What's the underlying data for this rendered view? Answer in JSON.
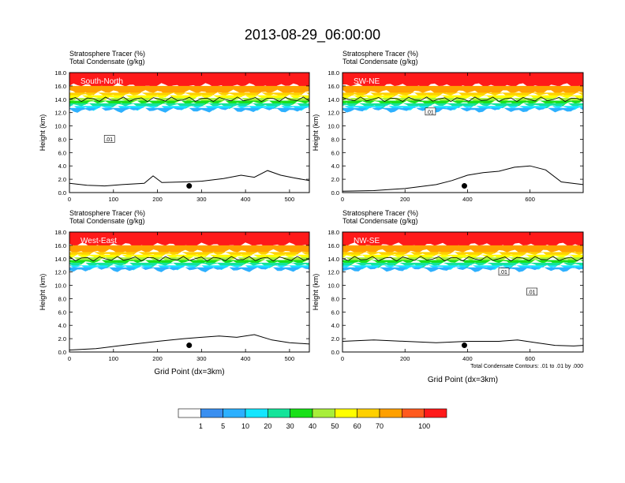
{
  "title": "2013-08-29_06:00:00",
  "colors": {
    "levels": [
      "#ffffff",
      "#3a8ff0",
      "#2cb0ff",
      "#14e6ff",
      "#14e49a",
      "#18e018",
      "#a8ee3a",
      "#ffff00",
      "#ffd000",
      "#ffa000",
      "#ff5a1e",
      "#ff1a1a"
    ]
  },
  "chart_data": [
    {
      "type": "heatmap",
      "name": "South-North",
      "header_line1": "Stratosphere Tracer   (%)",
      "header_line2": "Total Condensate   (g/kg)",
      "ylabel": "Height (km)",
      "xlabel": "",
      "xlim": [
        0,
        545
      ],
      "ylim": [
        0,
        18
      ],
      "xticks": [
        0,
        100,
        200,
        300,
        400,
        500
      ],
      "xtick_labels": [
        "0",
        "100",
        "200",
        "300",
        "400",
        "500"
      ],
      "yticks": [
        0,
        2,
        4,
        6,
        8,
        10,
        12,
        14,
        16,
        18
      ],
      "ytick_labels": [
        "0.0",
        "2.0",
        "4.0",
        "6.0",
        "8.0",
        "10.0",
        "12.0",
        "14.0",
        "16.0",
        "18.0"
      ],
      "tracer_bands_km": [
        [
          18,
          16,
          100
        ],
        [
          16,
          15,
          70
        ],
        [
          15,
          14.6,
          60
        ],
        [
          14.6,
          14.2,
          50
        ],
        [
          14.2,
          13.8,
          40
        ],
        [
          13.8,
          13.4,
          30
        ],
        [
          13.4,
          13.0,
          20
        ],
        [
          13.0,
          12.7,
          10
        ],
        [
          12.7,
          12.4,
          5
        ]
      ],
      "contour_label": ".01",
      "contour_label_pos": [
        90,
        8.0
      ],
      "marker": [
        272,
        1.0
      ],
      "terrain": [
        [
          0,
          1.4
        ],
        [
          40,
          1.1
        ],
        [
          80,
          1.0
        ],
        [
          120,
          1.2
        ],
        [
          170,
          1.4
        ],
        [
          190,
          2.5
        ],
        [
          210,
          1.5
        ],
        [
          260,
          1.6
        ],
        [
          300,
          1.7
        ],
        [
          350,
          2.1
        ],
        [
          390,
          2.6
        ],
        [
          420,
          2.3
        ],
        [
          450,
          3.3
        ],
        [
          480,
          2.6
        ],
        [
          510,
          2.2
        ],
        [
          545,
          1.8
        ]
      ]
    },
    {
      "type": "heatmap",
      "name": "SW-NE",
      "header_line1": "Stratosphere Tracer   (%)",
      "header_line2": "Total Condensate   (g/kg)",
      "ylabel": "Height (km)",
      "xlabel": "",
      "xlim": [
        0,
        770
      ],
      "ylim": [
        0,
        18
      ],
      "xticks": [
        0,
        200,
        400,
        600
      ],
      "xtick_labels": [
        "0",
        "200",
        "400",
        "600"
      ],
      "yticks": [
        0,
        2,
        4,
        6,
        8,
        10,
        12,
        14,
        16,
        18
      ],
      "ytick_labels": [
        "0.0",
        "2.0",
        "4.0",
        "6.0",
        "8.0",
        "10.0",
        "12.0",
        "14.0",
        "16.0",
        "18.0"
      ],
      "tracer_bands_km": [
        [
          18,
          16,
          100
        ],
        [
          16,
          15,
          70
        ],
        [
          15,
          14.6,
          60
        ],
        [
          14.6,
          14.2,
          50
        ],
        [
          14.2,
          13.8,
          40
        ],
        [
          13.8,
          13.4,
          30
        ],
        [
          13.4,
          13.0,
          20
        ],
        [
          13.0,
          12.7,
          10
        ],
        [
          12.7,
          12.4,
          5
        ]
      ],
      "contour_label": ".01",
      "contour_label_pos": [
        280,
        12.1
      ],
      "marker": [
        390,
        1.0
      ],
      "terrain": [
        [
          0,
          0.2
        ],
        [
          100,
          0.3
        ],
        [
          200,
          0.6
        ],
        [
          300,
          1.2
        ],
        [
          350,
          1.8
        ],
        [
          400,
          2.6
        ],
        [
          450,
          3.0
        ],
        [
          500,
          3.2
        ],
        [
          550,
          3.8
        ],
        [
          600,
          4.0
        ],
        [
          650,
          3.4
        ],
        [
          700,
          1.6
        ],
        [
          770,
          1.2
        ]
      ]
    },
    {
      "type": "heatmap",
      "name": "West-East",
      "header_line1": "Stratosphere Tracer   (%)",
      "header_line2": "Total Condensate   (g/kg)",
      "ylabel": "Height (km)",
      "xlabel": "Grid Point (dx=3km)",
      "xlim": [
        0,
        545
      ],
      "ylim": [
        0,
        18
      ],
      "xticks": [
        0,
        100,
        200,
        300,
        400,
        500
      ],
      "xtick_labels": [
        "0",
        "100",
        "200",
        "300",
        "400",
        "500"
      ],
      "yticks": [
        0,
        2,
        4,
        6,
        8,
        10,
        12,
        14,
        16,
        18
      ],
      "ytick_labels": [
        "0.0",
        "2.0",
        "4.0",
        "6.0",
        "8.0",
        "10.0",
        "12.0",
        "14.0",
        "16.0",
        "18.0"
      ],
      "tracer_bands_km": [
        [
          18,
          16,
          100
        ],
        [
          16,
          15,
          70
        ],
        [
          15,
          14.6,
          60
        ],
        [
          14.6,
          14.2,
          50
        ],
        [
          14.2,
          13.8,
          40
        ],
        [
          13.8,
          13.4,
          30
        ],
        [
          13.4,
          13.0,
          20
        ],
        [
          13.0,
          12.7,
          10
        ],
        [
          12.7,
          12.4,
          5
        ]
      ],
      "contour_label": "",
      "contour_label_pos": [
        0,
        0
      ],
      "marker": [
        272,
        1.0
      ],
      "terrain": [
        [
          0,
          0.3
        ],
        [
          60,
          0.5
        ],
        [
          120,
          1.0
        ],
        [
          200,
          1.6
        ],
        [
          260,
          2.0
        ],
        [
          300,
          2.2
        ],
        [
          340,
          2.4
        ],
        [
          380,
          2.2
        ],
        [
          420,
          2.6
        ],
        [
          460,
          1.8
        ],
        [
          500,
          1.4
        ],
        [
          545,
          1.2
        ]
      ]
    },
    {
      "type": "heatmap",
      "name": "NW-SE",
      "header_line1": "Stratosphere Tracer   (%)",
      "header_line2": "Total Condensate   (g/kg)",
      "ylabel": "Height (km)",
      "xlabel": "Grid Point (dx=3km)",
      "xlim": [
        0,
        770
      ],
      "ylim": [
        0,
        18
      ],
      "xticks": [
        0,
        200,
        400,
        600
      ],
      "xtick_labels": [
        "0",
        "200",
        "400",
        "600"
      ],
      "yticks": [
        0,
        2,
        4,
        6,
        8,
        10,
        12,
        14,
        16,
        18
      ],
      "ytick_labels": [
        "0.0",
        "2.0",
        "4.0",
        "6.0",
        "8.0",
        "10.0",
        "12.0",
        "14.0",
        "16.0",
        "18.0"
      ],
      "tracer_bands_km": [
        [
          18,
          16,
          100
        ],
        [
          16,
          15,
          70
        ],
        [
          15,
          14.6,
          60
        ],
        [
          14.6,
          14.2,
          50
        ],
        [
          14.2,
          13.8,
          40
        ],
        [
          13.8,
          13.4,
          30
        ],
        [
          13.4,
          13.0,
          20
        ],
        [
          13.0,
          12.7,
          10
        ],
        [
          12.7,
          12.4,
          5
        ]
      ],
      "contour_label": ".01",
      "contour_label_pos": [
        515,
        12.0
      ],
      "contour_label2": ".01",
      "contour_label2_pos": [
        605,
        9.0
      ],
      "footnote": "Total Condensate Contours: .01 to .01 by .000",
      "marker": [
        390,
        1.0
      ],
      "terrain": [
        [
          0,
          1.6
        ],
        [
          100,
          1.8
        ],
        [
          200,
          1.6
        ],
        [
          300,
          1.4
        ],
        [
          400,
          1.6
        ],
        [
          500,
          1.6
        ],
        [
          560,
          1.8
        ],
        [
          620,
          1.4
        ],
        [
          680,
          1.0
        ],
        [
          740,
          0.9
        ],
        [
          770,
          1.0
        ]
      ]
    }
  ],
  "colorbar": {
    "labels": [
      "1",
      "5",
      "10",
      "20",
      "30",
      "40",
      "50",
      "60",
      "70",
      "100"
    ]
  }
}
